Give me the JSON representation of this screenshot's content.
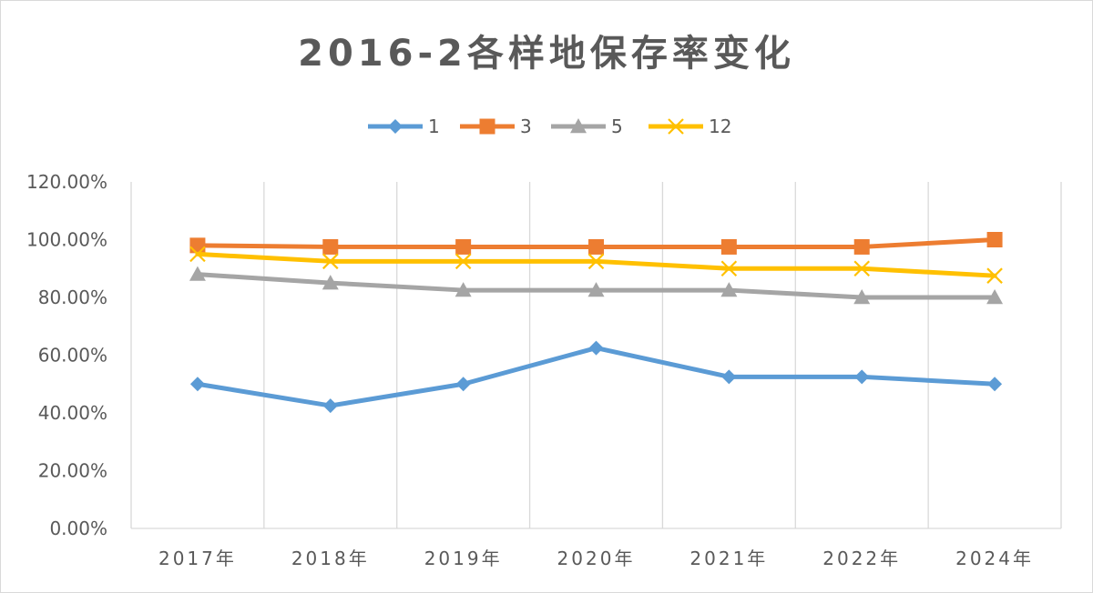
{
  "chart_data": {
    "type": "line",
    "title": "2016-2各样地保存率变化",
    "xlabel": "",
    "ylabel": "",
    "categories": [
      "2017年",
      "2018年",
      "2019年",
      "2020年",
      "2021年",
      "2022年",
      "2024年"
    ],
    "y_ticks": [
      "0.00%",
      "20.00%",
      "40.00%",
      "60.00%",
      "80.00%",
      "100.00%",
      "120.00%"
    ],
    "ylim": [
      0,
      1.2
    ],
    "legend_position": "top",
    "grid": "vertical",
    "series": [
      {
        "name": "1",
        "marker": "diamond",
        "color": "#5B9BD5",
        "values": [
          0.5,
          0.425,
          0.5,
          0.625,
          0.525,
          0.525,
          0.5
        ]
      },
      {
        "name": "3",
        "marker": "square",
        "color": "#ED7D31",
        "values": [
          0.98,
          0.975,
          0.975,
          0.975,
          0.975,
          0.975,
          1.0
        ]
      },
      {
        "name": "5",
        "marker": "triangle",
        "color": "#A5A5A5",
        "values": [
          0.88,
          0.85,
          0.825,
          0.825,
          0.825,
          0.8,
          0.8
        ]
      },
      {
        "name": "12",
        "marker": "x",
        "color": "#FFC000",
        "values": [
          0.95,
          0.925,
          0.925,
          0.925,
          0.9,
          0.9,
          0.875
        ]
      }
    ]
  }
}
